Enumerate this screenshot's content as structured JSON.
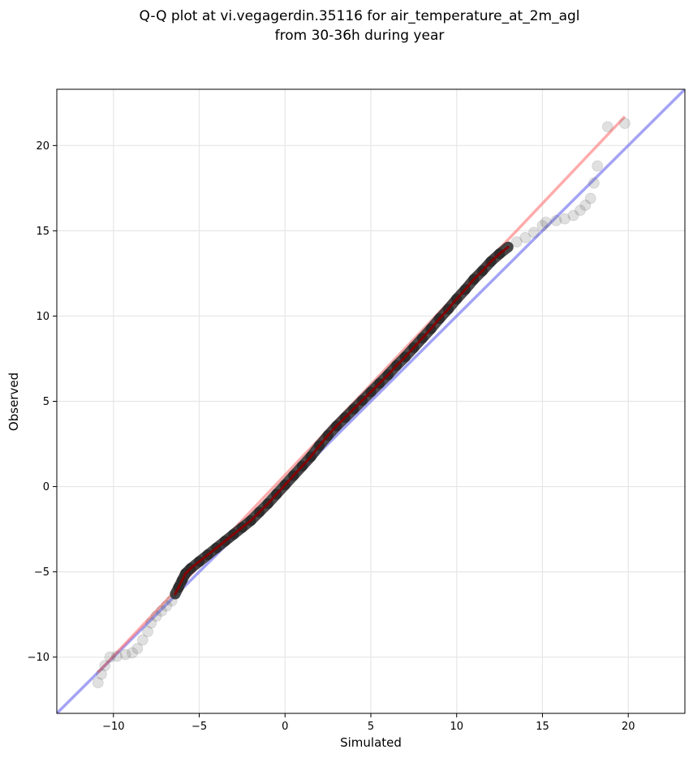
{
  "chart_data": {
    "type": "scatter",
    "title_lines": [
      "Q-Q plot at vi.vegagerdin.35116 for air_temperature_at_2m_agl",
      "from 30-36h during year"
    ],
    "xlabel": "Simulated",
    "ylabel": "Observed",
    "xlim": [
      -13.3,
      23.3
    ],
    "ylim": [
      -13.3,
      23.3
    ],
    "xticks": [
      -10,
      -5,
      0,
      5,
      10,
      15,
      20
    ],
    "yticks": [
      -10,
      -5,
      0,
      5,
      10,
      15,
      20
    ],
    "xtick_labels": [
      "−10",
      "−5",
      "0",
      "5",
      "10",
      "15",
      "20"
    ],
    "ytick_labels": [
      "−10",
      "−5",
      "0",
      "5",
      "10",
      "15",
      "20"
    ],
    "grid": true,
    "quantile_points": [
      [
        -10.9,
        -11.5
      ],
      [
        -10.7,
        -11.0
      ],
      [
        -10.5,
        -10.5
      ],
      [
        -10.2,
        -10.0
      ],
      [
        -9.8,
        -9.95
      ],
      [
        -9.3,
        -9.85
      ],
      [
        -8.9,
        -9.75
      ],
      [
        -8.6,
        -9.5
      ],
      [
        -8.3,
        -9.0
      ],
      [
        -8.0,
        -8.5
      ],
      [
        -7.8,
        -8.0
      ],
      [
        -7.5,
        -7.6
      ],
      [
        -7.2,
        -7.3
      ],
      [
        -6.9,
        -7.0
      ],
      [
        -6.6,
        -6.7
      ],
      [
        -6.4,
        -6.3
      ],
      [
        -6.2,
        -5.9
      ],
      [
        -6.0,
        -5.5
      ],
      [
        -5.8,
        -5.1
      ],
      [
        -5.5,
        -4.8
      ],
      [
        -5.0,
        -4.4
      ],
      [
        -4.5,
        -4.0
      ],
      [
        -4.0,
        -3.6
      ],
      [
        -3.5,
        -3.2
      ],
      [
        -3.0,
        -2.8
      ],
      [
        -2.5,
        -2.4
      ],
      [
        -2.0,
        -2.0
      ],
      [
        -1.5,
        -1.5
      ],
      [
        -1.0,
        -1.0
      ],
      [
        -0.5,
        -0.45
      ],
      [
        0.0,
        0.1
      ],
      [
        0.5,
        0.65
      ],
      [
        1.0,
        1.2
      ],
      [
        1.5,
        1.75
      ],
      [
        2.0,
        2.4
      ],
      [
        2.5,
        3.0
      ],
      [
        3.0,
        3.55
      ],
      [
        3.5,
        4.05
      ],
      [
        4.0,
        4.55
      ],
      [
        4.5,
        5.05
      ],
      [
        5.0,
        5.55
      ],
      [
        5.5,
        6.05
      ],
      [
        6.0,
        6.55
      ],
      [
        6.5,
        7.1
      ],
      [
        7.0,
        7.6
      ],
      [
        7.5,
        8.15
      ],
      [
        8.0,
        8.7
      ],
      [
        8.5,
        9.25
      ],
      [
        9.0,
        9.85
      ],
      [
        9.5,
        10.4
      ],
      [
        10.0,
        11.0
      ],
      [
        10.5,
        11.55
      ],
      [
        11.0,
        12.15
      ],
      [
        11.5,
        12.65
      ],
      [
        12.0,
        13.2
      ],
      [
        12.5,
        13.65
      ],
      [
        13.0,
        14.05
      ],
      [
        13.5,
        14.35
      ],
      [
        14.0,
        14.6
      ],
      [
        14.5,
        14.9
      ],
      [
        15.0,
        15.3
      ],
      [
        15.2,
        15.5
      ],
      [
        15.8,
        15.6
      ],
      [
        16.3,
        15.7
      ],
      [
        16.8,
        15.9
      ],
      [
        17.2,
        16.2
      ],
      [
        17.5,
        16.5
      ],
      [
        17.8,
        16.9
      ],
      [
        18.0,
        17.8
      ],
      [
        18.2,
        18.8
      ],
      [
        18.8,
        21.1
      ],
      [
        19.8,
        21.3
      ]
    ],
    "quantile_point_color": "#555555",
    "fit_line": {
      "x": [
        -10.9,
        19.8
      ],
      "y": [
        -10.9,
        21.7
      ],
      "color": "#ff6666"
    },
    "identity_line": {
      "x": [
        -13.3,
        23.3
      ],
      "y": [
        -13.3,
        23.3
      ],
      "color": "#6666ee"
    }
  }
}
